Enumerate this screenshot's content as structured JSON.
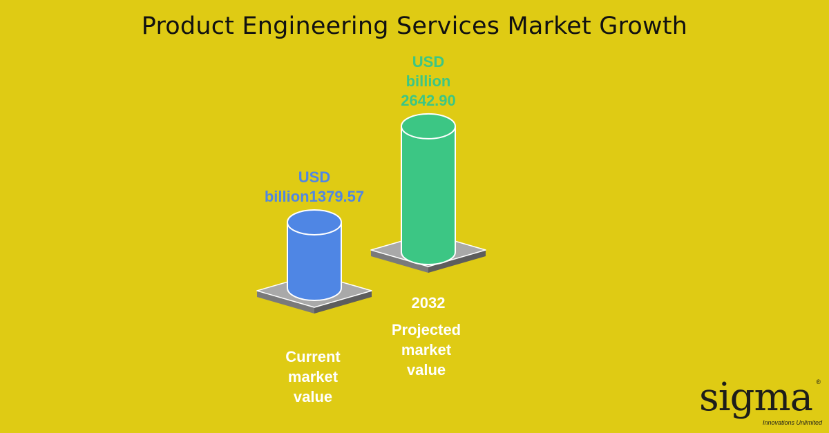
{
  "chart_data": {
    "type": "bar",
    "title": "Product Engineering Services Market Growth",
    "categories": [
      "Current market value",
      "Projected market value"
    ],
    "year_labels": [
      "",
      "2032"
    ],
    "value_labels": [
      [
        "USD",
        "billion1379.57"
      ],
      [
        "USD",
        "billion",
        "2642.90"
      ]
    ],
    "category_label_lines": [
      [
        "Current",
        "market",
        "value"
      ],
      [
        "Projected",
        "market",
        "value"
      ]
    ],
    "series": [
      {
        "values": [
          1379.57,
          2642.9
        ]
      }
    ],
    "colors": [
      "#4f86e4",
      "#3cc684"
    ],
    "pedestal_color": "#a9a9a9",
    "background": "#dfcb14"
  },
  "logo": {
    "word": "sigma",
    "tagline": "Innovations Unlimited",
    "registered": "®"
  }
}
